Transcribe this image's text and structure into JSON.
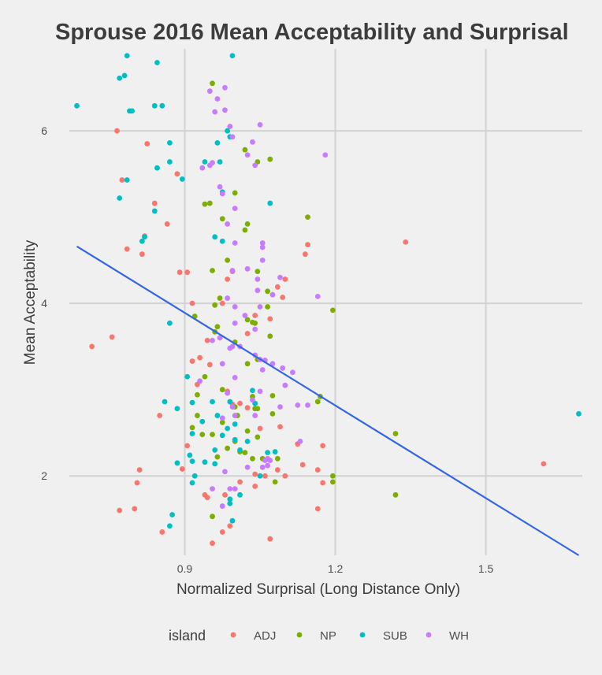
{
  "chart_data": {
    "type": "scatter",
    "title": "Sprouse 2016 Mean Acceptability and Surprisal",
    "xlabel": "Normalized Surprisal (Long Distance Only)",
    "ylabel": "Mean Acceptability",
    "xlim": [
      0.67,
      1.7
    ],
    "ylim": [
      1.08,
      6.95
    ],
    "x_ticks": [
      0.9,
      1.2,
      1.5
    ],
    "x_tick_labels": [
      "0.9",
      "1.2",
      "1.5"
    ],
    "y_ticks": [
      2,
      4,
      6
    ],
    "y_tick_labels": [
      "2",
      "4",
      "6"
    ],
    "grid": true,
    "legend": {
      "title": "island",
      "position": "bottom"
    },
    "trend_line": {
      "method": "linear",
      "color": "#3366e6",
      "x": [
        0.685,
        1.685
      ],
      "y": [
        4.66,
        1.08
      ]
    },
    "series": [
      {
        "name": "ADJ",
        "color": "#f8766d",
        "points": [
          [
            0.765,
            6.0
          ],
          [
            0.825,
            5.85
          ],
          [
            0.885,
            5.5
          ],
          [
            0.775,
            5.43
          ],
          [
            0.84,
            5.16
          ],
          [
            0.865,
            4.92
          ],
          [
            0.82,
            4.78
          ],
          [
            0.785,
            4.63
          ],
          [
            0.815,
            4.57
          ],
          [
            0.89,
            4.36
          ],
          [
            0.905,
            4.36
          ],
          [
            0.715,
            3.5
          ],
          [
            0.755,
            3.61
          ],
          [
            0.915,
            4.0
          ],
          [
            0.975,
            4.0
          ],
          [
            1.145,
            4.68
          ],
          [
            1.14,
            4.57
          ],
          [
            1.34,
            4.71
          ],
          [
            1.1,
            4.28
          ],
          [
            1.085,
            4.19
          ],
          [
            1.095,
            4.07
          ],
          [
            0.995,
            4.37
          ],
          [
            0.985,
            4.28
          ],
          [
            1.025,
            3.65
          ],
          [
            1.04,
            3.86
          ],
          [
            1.07,
            3.82
          ],
          [
            0.945,
            3.57
          ],
          [
            0.95,
            3.29
          ],
          [
            0.93,
            3.37
          ],
          [
            0.915,
            3.33
          ],
          [
            0.985,
            2.98
          ],
          [
            0.995,
            2.83
          ],
          [
            1.01,
            2.84
          ],
          [
            1.025,
            2.79
          ],
          [
            0.925,
            3.06
          ],
          [
            0.85,
            2.7
          ],
          [
            1.09,
            2.57
          ],
          [
            1.05,
            2.55
          ],
          [
            0.905,
            2.35
          ],
          [
            0.895,
            2.08
          ],
          [
            0.81,
            2.07
          ],
          [
            0.805,
            1.92
          ],
          [
            0.8,
            1.62
          ],
          [
            0.77,
            1.6
          ],
          [
            0.855,
            1.35
          ],
          [
            0.94,
            1.78
          ],
          [
            0.945,
            1.75
          ],
          [
            0.955,
            1.22
          ],
          [
            0.975,
            1.35
          ],
          [
            0.99,
            1.42
          ],
          [
            1.07,
            1.27
          ],
          [
            1.04,
            2.02
          ],
          [
            1.06,
            2.0
          ],
          [
            1.085,
            2.07
          ],
          [
            1.125,
            2.37
          ],
          [
            1.165,
            2.07
          ],
          [
            1.175,
            2.35
          ],
          [
            1.175,
            1.92
          ],
          [
            1.165,
            1.62
          ],
          [
            1.04,
            1.88
          ],
          [
            1.1,
            2.0
          ],
          [
            1.135,
            2.13
          ],
          [
            1.01,
            1.93
          ],
          [
            1.615,
            2.14
          ],
          [
            0.98,
            1.78
          ]
        ]
      },
      {
        "name": "NP",
        "color": "#7cae00",
        "points": [
          [
            0.955,
            6.55
          ],
          [
            1.02,
            5.78
          ],
          [
            1.045,
            5.64
          ],
          [
            1.07,
            5.67
          ],
          [
            1.0,
            5.28
          ],
          [
            0.94,
            5.15
          ],
          [
            0.95,
            5.16
          ],
          [
            1.025,
            4.92
          ],
          [
            1.02,
            4.85
          ],
          [
            0.975,
            4.98
          ],
          [
            1.145,
            5.0
          ],
          [
            0.985,
            4.5
          ],
          [
            0.955,
            4.38
          ],
          [
            1.045,
            4.37
          ],
          [
            1.065,
            4.14
          ],
          [
            0.97,
            4.06
          ],
          [
            0.96,
            3.98
          ],
          [
            1.065,
            3.96
          ],
          [
            1.195,
            3.92
          ],
          [
            0.92,
            3.85
          ],
          [
            1.025,
            3.81
          ],
          [
            1.035,
            3.78
          ],
          [
            1.04,
            3.77
          ],
          [
            0.96,
            3.67
          ],
          [
            0.965,
            3.73
          ],
          [
            1.07,
            3.62
          ],
          [
            1.0,
            3.55
          ],
          [
            1.045,
            3.35
          ],
          [
            1.025,
            3.3
          ],
          [
            0.94,
            3.15
          ],
          [
            0.975,
            3.0
          ],
          [
            1.035,
            2.92
          ],
          [
            1.075,
            2.93
          ],
          [
            0.925,
            2.94
          ],
          [
            1.17,
            2.92
          ],
          [
            1.165,
            2.86
          ],
          [
            1.0,
            2.8
          ],
          [
            1.04,
            2.78
          ],
          [
            1.045,
            2.78
          ],
          [
            1.075,
            2.72
          ],
          [
            1.005,
            2.7
          ],
          [
            0.975,
            2.62
          ],
          [
            0.925,
            2.7
          ],
          [
            0.915,
            2.56
          ],
          [
            0.955,
            2.48
          ],
          [
            1.025,
            2.52
          ],
          [
            1.045,
            2.45
          ],
          [
            1.32,
            2.49
          ],
          [
            0.935,
            2.48
          ],
          [
            1.0,
            2.4
          ],
          [
            0.985,
            2.32
          ],
          [
            0.965,
            2.22
          ],
          [
            1.01,
            2.28
          ],
          [
            1.02,
            2.27
          ],
          [
            1.035,
            2.2
          ],
          [
            1.055,
            2.2
          ],
          [
            1.085,
            2.2
          ],
          [
            1.195,
            2.0
          ],
          [
            1.195,
            1.93
          ],
          [
            1.08,
            1.93
          ],
          [
            1.32,
            1.78
          ],
          [
            0.955,
            1.53
          ]
        ]
      },
      {
        "name": "SUB",
        "color": "#00bfc4",
        "points": [
          [
            0.685,
            6.29
          ],
          [
            0.77,
            6.61
          ],
          [
            0.78,
            6.64
          ],
          [
            0.785,
            6.87
          ],
          [
            0.845,
            6.79
          ],
          [
            0.995,
            6.87
          ],
          [
            0.79,
            6.23
          ],
          [
            0.795,
            6.23
          ],
          [
            0.84,
            6.29
          ],
          [
            0.855,
            6.29
          ],
          [
            0.87,
            5.86
          ],
          [
            0.87,
            5.64
          ],
          [
            0.845,
            5.57
          ],
          [
            0.895,
            5.44
          ],
          [
            0.785,
            5.43
          ],
          [
            0.77,
            5.22
          ],
          [
            0.84,
            5.07
          ],
          [
            0.82,
            4.77
          ],
          [
            0.815,
            4.72
          ],
          [
            0.985,
            6.0
          ],
          [
            0.965,
            5.86
          ],
          [
            0.97,
            5.64
          ],
          [
            0.94,
            5.64
          ],
          [
            0.99,
            5.93
          ],
          [
            0.975,
            5.29
          ],
          [
            1.07,
            5.16
          ],
          [
            0.96,
            4.77
          ],
          [
            0.975,
            4.72
          ],
          [
            0.87,
            3.77
          ],
          [
            0.905,
            3.15
          ],
          [
            0.915,
            2.85
          ],
          [
            0.955,
            2.86
          ],
          [
            0.86,
            2.86
          ],
          [
            0.885,
            2.78
          ],
          [
            0.935,
            2.63
          ],
          [
            0.915,
            2.49
          ],
          [
            0.965,
            2.7
          ],
          [
            0.99,
            2.86
          ],
          [
            1.035,
            2.99
          ],
          [
            1.04,
            2.84
          ],
          [
            1.0,
            2.6
          ],
          [
            0.985,
            2.55
          ],
          [
            0.975,
            2.47
          ],
          [
            1.0,
            2.42
          ],
          [
            1.025,
            2.4
          ],
          [
            0.96,
            2.3
          ],
          [
            0.96,
            2.14
          ],
          [
            0.94,
            2.16
          ],
          [
            0.91,
            2.24
          ],
          [
            0.915,
            2.17
          ],
          [
            0.92,
            2.0
          ],
          [
            0.915,
            1.92
          ],
          [
            0.885,
            2.15
          ],
          [
            1.065,
            2.27
          ],
          [
            1.08,
            2.28
          ],
          [
            1.01,
            2.3
          ],
          [
            1.05,
            2.0
          ],
          [
            1.01,
            1.78
          ],
          [
            0.99,
            1.73
          ],
          [
            0.995,
            1.48
          ],
          [
            0.99,
            1.68
          ],
          [
            0.875,
            1.55
          ],
          [
            0.87,
            1.42
          ],
          [
            1.685,
            2.72
          ]
        ]
      },
      {
        "name": "WH",
        "color": "#c77cff",
        "points": [
          [
            0.95,
            6.46
          ],
          [
            0.98,
            6.5
          ],
          [
            0.965,
            6.37
          ],
          [
            0.98,
            6.24
          ],
          [
            0.96,
            6.22
          ],
          [
            0.99,
            6.05
          ],
          [
            0.995,
            5.93
          ],
          [
            1.05,
            6.07
          ],
          [
            1.035,
            5.87
          ],
          [
            1.18,
            5.72
          ],
          [
            0.95,
            5.6
          ],
          [
            0.955,
            5.63
          ],
          [
            1.025,
            5.72
          ],
          [
            0.935,
            5.57
          ],
          [
            1.04,
            5.6
          ],
          [
            0.97,
            5.35
          ],
          [
            0.975,
            5.27
          ],
          [
            1.0,
            5.1
          ],
          [
            0.985,
            4.92
          ],
          [
            1.055,
            4.7
          ],
          [
            1.055,
            4.65
          ],
          [
            1.0,
            4.7
          ],
          [
            1.055,
            4.5
          ],
          [
            1.025,
            4.4
          ],
          [
            0.995,
            4.38
          ],
          [
            1.045,
            4.28
          ],
          [
            1.09,
            4.3
          ],
          [
            1.045,
            4.15
          ],
          [
            1.075,
            4.1
          ],
          [
            1.165,
            4.08
          ],
          [
            0.985,
            4.06
          ],
          [
            1.02,
            3.86
          ],
          [
            1.0,
            3.96
          ],
          [
            1.05,
            3.96
          ],
          [
            1.0,
            3.77
          ],
          [
            1.04,
            3.7
          ],
          [
            0.97,
            3.6
          ],
          [
            0.955,
            3.57
          ],
          [
            0.995,
            3.5
          ],
          [
            0.99,
            3.48
          ],
          [
            1.01,
            3.5
          ],
          [
            1.04,
            3.4
          ],
          [
            1.05,
            3.35
          ],
          [
            1.06,
            3.34
          ],
          [
            1.075,
            3.3
          ],
          [
            0.975,
            3.3
          ],
          [
            1.095,
            3.25
          ],
          [
            1.055,
            3.23
          ],
          [
            1.115,
            3.2
          ],
          [
            0.93,
            3.1
          ],
          [
            1.0,
            3.14
          ],
          [
            1.1,
            3.05
          ],
          [
            1.05,
            2.98
          ],
          [
            0.985,
            2.96
          ],
          [
            0.995,
            2.8
          ],
          [
            1.035,
            2.88
          ],
          [
            1.09,
            2.8
          ],
          [
            1.125,
            2.82
          ],
          [
            1.145,
            2.82
          ],
          [
            1.04,
            2.7
          ],
          [
            0.975,
            2.67
          ],
          [
            1.0,
            2.7
          ],
          [
            1.13,
            2.4
          ],
          [
            1.065,
            2.2
          ],
          [
            1.06,
            2.18
          ],
          [
            1.065,
            2.12
          ],
          [
            1.055,
            2.1
          ],
          [
            1.07,
            2.18
          ],
          [
            1.025,
            2.1
          ],
          [
            0.98,
            2.05
          ],
          [
            0.955,
            1.85
          ],
          [
            0.99,
            1.85
          ],
          [
            1.0,
            1.85
          ],
          [
            0.975,
            1.65
          ]
        ]
      }
    ]
  }
}
